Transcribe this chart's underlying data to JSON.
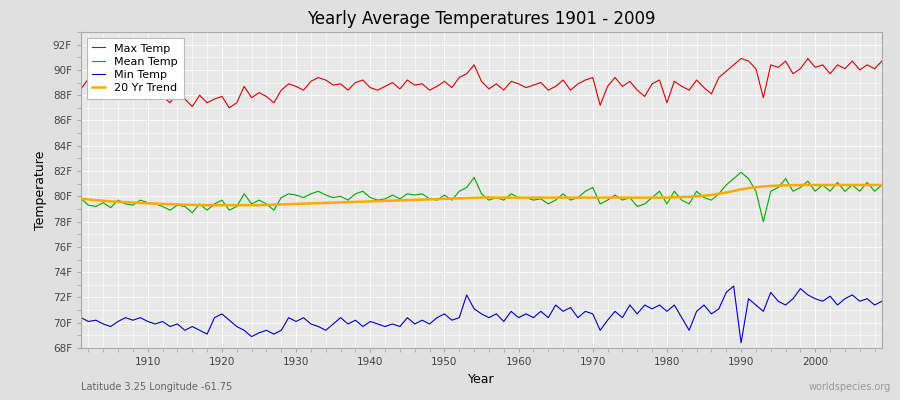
{
  "title": "Yearly Average Temperatures 1901 - 2009",
  "xlabel": "Year",
  "ylabel": "Temperature",
  "xlim": [
    1901,
    2009
  ],
  "ylim": [
    68,
    93
  ],
  "yticks": [
    68,
    70,
    72,
    74,
    76,
    78,
    80,
    82,
    84,
    86,
    88,
    90,
    92
  ],
  "ytick_labels": [
    "68F",
    "70F",
    "72F",
    "74F",
    "76F",
    "78F",
    "80F",
    "82F",
    "84F",
    "86F",
    "88F",
    "90F",
    "92F"
  ],
  "xticks": [
    1910,
    1920,
    1930,
    1940,
    1950,
    1960,
    1970,
    1980,
    1990,
    2000
  ],
  "plot_bg_color": "#e8e8e8",
  "fig_bg_color": "#e0e0e0",
  "grid_color": "#ffffff",
  "line_colors": {
    "max": "#dd0000",
    "mean": "#00aa00",
    "min": "#0000cc",
    "trend": "#ffaa00"
  },
  "legend_labels": [
    "Max Temp",
    "Mean Temp",
    "Min Temp",
    "20 Yr Trend"
  ],
  "bottom_left": "Latitude 3.25 Longitude -61.75",
  "bottom_right": "worldspecies.org",
  "max_temps": [
    88.5,
    89.3,
    88.8,
    89.0,
    88.2,
    88.5,
    89.1,
    88.4,
    89.0,
    88.6,
    88.1,
    87.9,
    87.4,
    88.2,
    87.7,
    87.1,
    88.0,
    87.4,
    87.7,
    87.9,
    87.0,
    87.4,
    88.7,
    87.8,
    88.2,
    87.9,
    87.4,
    88.4,
    88.9,
    88.7,
    88.4,
    89.1,
    89.4,
    89.2,
    88.8,
    88.9,
    88.4,
    89.0,
    89.2,
    88.6,
    88.4,
    88.7,
    89.0,
    88.5,
    89.2,
    88.8,
    88.9,
    88.4,
    88.7,
    89.1,
    88.6,
    89.4,
    89.7,
    90.4,
    89.1,
    88.5,
    88.9,
    88.4,
    89.1,
    88.9,
    88.6,
    88.8,
    89.0,
    88.4,
    88.7,
    89.2,
    88.4,
    88.9,
    89.2,
    89.4,
    87.2,
    88.7,
    89.4,
    88.7,
    89.1,
    88.4,
    87.9,
    88.9,
    89.2,
    87.4,
    89.1,
    88.7,
    88.4,
    89.2,
    88.6,
    88.1,
    89.4,
    89.9,
    90.4,
    90.9,
    90.7,
    90.1,
    87.8,
    90.4,
    90.2,
    90.7,
    89.7,
    90.1,
    90.9,
    90.2,
    90.4,
    89.7,
    90.4,
    90.1,
    90.7,
    90.0,
    90.4,
    90.1,
    90.7
  ],
  "mean_temps": [
    79.8,
    79.3,
    79.2,
    79.5,
    79.1,
    79.7,
    79.4,
    79.3,
    79.7,
    79.5,
    79.4,
    79.2,
    78.9,
    79.3,
    79.2,
    78.7,
    79.4,
    78.9,
    79.4,
    79.7,
    78.9,
    79.2,
    80.2,
    79.4,
    79.7,
    79.4,
    78.9,
    79.9,
    80.2,
    80.1,
    79.9,
    80.2,
    80.4,
    80.1,
    79.9,
    80.0,
    79.7,
    80.2,
    80.4,
    79.9,
    79.7,
    79.8,
    80.1,
    79.8,
    80.2,
    80.1,
    80.2,
    79.8,
    79.7,
    80.1,
    79.7,
    80.4,
    80.7,
    81.5,
    80.2,
    79.7,
    79.9,
    79.7,
    80.2,
    79.9,
    79.9,
    79.7,
    79.8,
    79.4,
    79.7,
    80.2,
    79.7,
    79.9,
    80.4,
    80.7,
    79.4,
    79.7,
    80.1,
    79.7,
    79.9,
    79.2,
    79.4,
    79.9,
    80.4,
    79.4,
    80.4,
    79.7,
    79.4,
    80.4,
    79.9,
    79.7,
    80.2,
    80.9,
    81.4,
    81.9,
    81.4,
    80.4,
    78.0,
    80.4,
    80.7,
    81.4,
    80.4,
    80.7,
    81.2,
    80.4,
    80.9,
    80.4,
    81.1,
    80.4,
    80.9,
    80.4,
    81.1,
    80.4,
    80.9
  ],
  "min_temps": [
    70.4,
    70.1,
    70.2,
    69.9,
    69.7,
    70.1,
    70.4,
    70.2,
    70.4,
    70.1,
    69.9,
    70.1,
    69.7,
    69.9,
    69.4,
    69.7,
    69.4,
    69.1,
    70.4,
    70.7,
    70.2,
    69.7,
    69.4,
    68.9,
    69.2,
    69.4,
    69.1,
    69.4,
    70.4,
    70.1,
    70.4,
    69.9,
    69.7,
    69.4,
    69.9,
    70.4,
    69.9,
    70.2,
    69.7,
    70.1,
    69.9,
    69.7,
    69.9,
    69.7,
    70.4,
    69.9,
    70.2,
    69.9,
    70.4,
    70.7,
    70.2,
    70.4,
    72.2,
    71.1,
    70.7,
    70.4,
    70.7,
    70.1,
    70.9,
    70.4,
    70.7,
    70.4,
    70.9,
    70.4,
    71.4,
    70.9,
    71.2,
    70.4,
    70.9,
    70.7,
    69.4,
    70.2,
    70.9,
    70.4,
    71.4,
    70.7,
    71.4,
    71.1,
    71.4,
    70.9,
    71.4,
    70.4,
    69.4,
    70.9,
    71.4,
    70.7,
    71.1,
    72.4,
    72.9,
    68.4,
    71.9,
    71.4,
    70.9,
    72.4,
    71.7,
    71.4,
    71.9,
    72.7,
    72.2,
    71.9,
    71.7,
    72.1,
    71.4,
    71.9,
    72.2,
    71.7,
    71.9,
    71.4,
    71.7
  ],
  "trend_vals": [
    79.8,
    79.75,
    79.7,
    79.65,
    79.6,
    79.57,
    79.54,
    79.51,
    79.48,
    79.45,
    79.42,
    79.4,
    79.38,
    79.36,
    79.34,
    79.32,
    79.3,
    79.3,
    79.3,
    79.3,
    79.3,
    79.3,
    79.3,
    79.3,
    79.3,
    79.32,
    79.34,
    79.36,
    79.38,
    79.4,
    79.42,
    79.44,
    79.46,
    79.48,
    79.5,
    79.52,
    79.54,
    79.56,
    79.58,
    79.6,
    79.62,
    79.64,
    79.66,
    79.68,
    79.7,
    79.72,
    79.74,
    79.76,
    79.78,
    79.8,
    79.82,
    79.84,
    79.86,
    79.88,
    79.9,
    79.92,
    79.9,
    79.9,
    79.9,
    79.9,
    79.9,
    79.9,
    79.9,
    79.9,
    79.9,
    79.9,
    79.9,
    79.9,
    79.9,
    79.9,
    79.9,
    79.9,
    79.9,
    79.9,
    79.9,
    79.9,
    79.9,
    79.9,
    79.9,
    79.9,
    79.92,
    79.94,
    79.96,
    80.0,
    80.05,
    80.1,
    80.2,
    80.3,
    80.42,
    80.55,
    80.65,
    80.72,
    80.78,
    80.82,
    80.85,
    80.87,
    80.88,
    80.89,
    80.9,
    80.9,
    80.9,
    80.9,
    80.9,
    80.9,
    80.9,
    80.9,
    80.9,
    80.9,
    80.9
  ]
}
